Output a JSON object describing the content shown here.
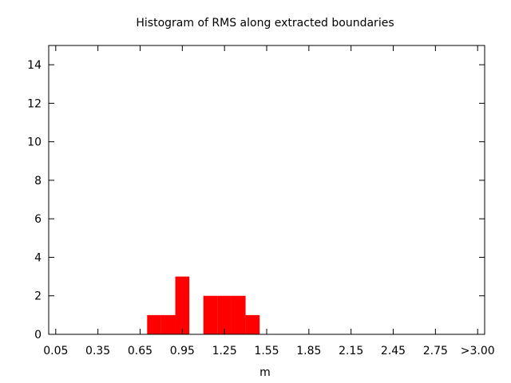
{
  "chart_data": {
    "type": "bar",
    "title": "Histogram of RMS along extracted boundaries",
    "xlabel": "m",
    "ylabel": "",
    "ylim": [
      0,
      15
    ],
    "yticks": [
      0,
      2,
      4,
      6,
      8,
      10,
      12,
      14
    ],
    "xtick_labels": [
      "0.05",
      "0.35",
      "0.65",
      "0.95",
      "1.25",
      "1.55",
      "1.85",
      "2.15",
      "2.45",
      "2.75",
      ">3.00"
    ],
    "bin_width": 0.1,
    "bins": [
      {
        "x": 0.7,
        "value": 1
      },
      {
        "x": 0.8,
        "value": 1
      },
      {
        "x": 0.9,
        "value": 3
      },
      {
        "x": 1.0,
        "value": 0
      },
      {
        "x": 1.1,
        "value": 2
      },
      {
        "x": 1.2,
        "value": 2
      },
      {
        "x": 1.3,
        "value": 2
      },
      {
        "x": 1.4,
        "value": 1
      }
    ],
    "bar_color": "#ff0000",
    "grid": false,
    "legend": "none"
  }
}
